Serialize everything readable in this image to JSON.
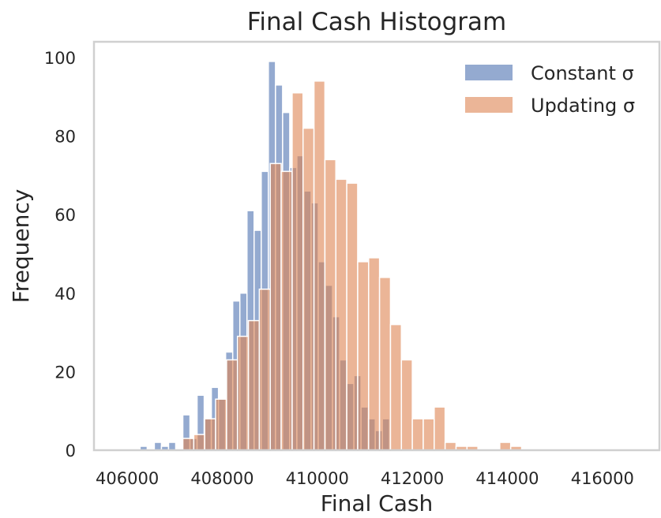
{
  "chart_data": {
    "type": "histogram",
    "title": "Final Cash Histogram",
    "xlabel": "Final Cash",
    "ylabel": "Frequency",
    "xlim": [
      405300,
      417200
    ],
    "ylim": [
      0,
      104
    ],
    "xticks": [
      406000,
      408000,
      410000,
      412000,
      414000,
      416000
    ],
    "xtick_labels": [
      "406000",
      "408000",
      "410000",
      "412000",
      "414000",
      "416000"
    ],
    "yticks": [
      0,
      20,
      40,
      60,
      80,
      100
    ],
    "ytick_labels": [
      "0",
      "20",
      "40",
      "60",
      "80",
      "100"
    ],
    "grid": false,
    "legend_position": "top-right",
    "series": [
      {
        "name": "Constant σ",
        "color": "#4c72b0",
        "bins": [
          {
            "x0": 406270,
            "x1": 406420,
            "value": 1
          },
          {
            "x0": 406420,
            "x1": 406570,
            "value": 0
          },
          {
            "x0": 406570,
            "x1": 406720,
            "value": 2
          },
          {
            "x0": 406720,
            "x1": 406870,
            "value": 1
          },
          {
            "x0": 406870,
            "x1": 407020,
            "value": 2
          },
          {
            "x0": 407020,
            "x1": 407170,
            "value": 0
          },
          {
            "x0": 407170,
            "x1": 407320,
            "value": 9
          },
          {
            "x0": 407320,
            "x1": 407470,
            "value": 3
          },
          {
            "x0": 407470,
            "x1": 407620,
            "value": 14
          },
          {
            "x0": 407620,
            "x1": 407770,
            "value": 8
          },
          {
            "x0": 407770,
            "x1": 407920,
            "value": 16
          },
          {
            "x0": 407920,
            "x1": 408070,
            "value": 13
          },
          {
            "x0": 408070,
            "x1": 408220,
            "value": 25
          },
          {
            "x0": 408220,
            "x1": 408370,
            "value": 38
          },
          {
            "x0": 408370,
            "x1": 408520,
            "value": 40
          },
          {
            "x0": 408520,
            "x1": 408670,
            "value": 61
          },
          {
            "x0": 408670,
            "x1": 408820,
            "value": 56
          },
          {
            "x0": 408820,
            "x1": 408970,
            "value": 71
          },
          {
            "x0": 408970,
            "x1": 409120,
            "value": 99
          },
          {
            "x0": 409120,
            "x1": 409270,
            "value": 93
          },
          {
            "x0": 409270,
            "x1": 409420,
            "value": 86
          },
          {
            "x0": 409420,
            "x1": 409570,
            "value": 72
          },
          {
            "x0": 409570,
            "x1": 409720,
            "value": 75
          },
          {
            "x0": 409720,
            "x1": 409870,
            "value": 66
          },
          {
            "x0": 409870,
            "x1": 410020,
            "value": 63
          },
          {
            "x0": 410020,
            "x1": 410170,
            "value": 48
          },
          {
            "x0": 410170,
            "x1": 410320,
            "value": 42
          },
          {
            "x0": 410320,
            "x1": 410470,
            "value": 34
          },
          {
            "x0": 410470,
            "x1": 410620,
            "value": 23
          },
          {
            "x0": 410620,
            "x1": 410770,
            "value": 17
          },
          {
            "x0": 410770,
            "x1": 410920,
            "value": 19
          },
          {
            "x0": 410920,
            "x1": 411070,
            "value": 11
          },
          {
            "x0": 411070,
            "x1": 411220,
            "value": 8
          },
          {
            "x0": 411220,
            "x1": 411370,
            "value": 5
          },
          {
            "x0": 411370,
            "x1": 411520,
            "value": 8
          }
        ]
      },
      {
        "name": "Updating σ",
        "color": "#dd8452",
        "bins": [
          {
            "x0": 407170,
            "x1": 407400,
            "value": 3
          },
          {
            "x0": 407400,
            "x1": 407630,
            "value": 4
          },
          {
            "x0": 407630,
            "x1": 407860,
            "value": 8
          },
          {
            "x0": 407860,
            "x1": 408090,
            "value": 13
          },
          {
            "x0": 408090,
            "x1": 408320,
            "value": 23
          },
          {
            "x0": 408320,
            "x1": 408550,
            "value": 29
          },
          {
            "x0": 408550,
            "x1": 408780,
            "value": 33
          },
          {
            "x0": 408780,
            "x1": 409010,
            "value": 41
          },
          {
            "x0": 409010,
            "x1": 409240,
            "value": 73
          },
          {
            "x0": 409240,
            "x1": 409470,
            "value": 71
          },
          {
            "x0": 409470,
            "x1": 409700,
            "value": 91
          },
          {
            "x0": 409700,
            "x1": 409930,
            "value": 82
          },
          {
            "x0": 409930,
            "x1": 410160,
            "value": 94
          },
          {
            "x0": 410160,
            "x1": 410390,
            "value": 74
          },
          {
            "x0": 410390,
            "x1": 410620,
            "value": 69
          },
          {
            "x0": 410620,
            "x1": 410850,
            "value": 68
          },
          {
            "x0": 410850,
            "x1": 411080,
            "value": 48
          },
          {
            "x0": 411080,
            "x1": 411310,
            "value": 49
          },
          {
            "x0": 411310,
            "x1": 411540,
            "value": 44
          },
          {
            "x0": 411540,
            "x1": 411770,
            "value": 32
          },
          {
            "x0": 411770,
            "x1": 412000,
            "value": 23
          },
          {
            "x0": 412000,
            "x1": 412230,
            "value": 8
          },
          {
            "x0": 412230,
            "x1": 412460,
            "value": 8
          },
          {
            "x0": 412460,
            "x1": 412690,
            "value": 11
          },
          {
            "x0": 412690,
            "x1": 412920,
            "value": 2
          },
          {
            "x0": 412920,
            "x1": 413150,
            "value": 1
          },
          {
            "x0": 413150,
            "x1": 413380,
            "value": 1
          },
          {
            "x0": 413380,
            "x1": 413610,
            "value": 0
          },
          {
            "x0": 413610,
            "x1": 413840,
            "value": 0
          },
          {
            "x0": 413840,
            "x1": 414070,
            "value": 2
          },
          {
            "x0": 414070,
            "x1": 414300,
            "value": 1
          }
        ]
      }
    ]
  }
}
